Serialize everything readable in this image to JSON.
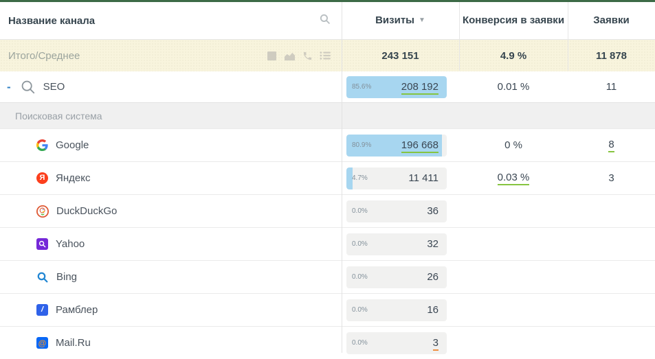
{
  "header": {
    "channel_column": "Название канала",
    "columns": [
      {
        "label": "Визиты",
        "sort": "desc"
      },
      {
        "label": "Конверсия в заявки",
        "sort": null
      },
      {
        "label": "Заявки",
        "sort": null
      }
    ]
  },
  "totals_row": {
    "label": "Итого/Среднее",
    "icons": [
      "grid-icon",
      "area-chart-icon",
      "phone-icon",
      "list-icon"
    ],
    "visits": "243 151",
    "conversion": "4.9 %",
    "leads": "11 878"
  },
  "rows": [
    {
      "type": "group",
      "name": "SEO",
      "icon": "magnifier",
      "toggle": "-",
      "visits_pct": "85.6%",
      "visits": "208 192",
      "visits_underline": "green",
      "fill": 100,
      "conversion": "0.01 %",
      "conversion_underline": null,
      "leads": "11",
      "leads_underline": null
    },
    {
      "type": "subheader",
      "name": "Поисковая система"
    },
    {
      "type": "channel",
      "name": "Google",
      "icon": "google",
      "visits_pct": "80.9%",
      "visits": "196 668",
      "visits_underline": "green",
      "fill": 95,
      "conversion": "0 %",
      "conversion_underline": null,
      "leads": "8",
      "leads_underline": "green"
    },
    {
      "type": "channel",
      "name": "Яндекс",
      "icon": "yandex",
      "visits_pct": "4.7%",
      "visits": "11 411",
      "visits_underline": null,
      "fill": 6,
      "conversion": "0.03 %",
      "conversion_underline": "green",
      "leads": "3",
      "leads_underline": null
    },
    {
      "type": "channel",
      "name": "DuckDuckGo",
      "icon": "duckduckgo",
      "visits_pct": "0.0%",
      "visits": "36",
      "visits_underline": null,
      "fill": 0,
      "conversion": "",
      "conversion_underline": null,
      "leads": "",
      "leads_underline": null
    },
    {
      "type": "channel",
      "name": "Yahoo",
      "icon": "yahoo",
      "visits_pct": "0.0%",
      "visits": "32",
      "visits_underline": null,
      "fill": 0,
      "conversion": "",
      "conversion_underline": null,
      "leads": "",
      "leads_underline": null
    },
    {
      "type": "channel",
      "name": "Bing",
      "icon": "bing",
      "visits_pct": "0.0%",
      "visits": "26",
      "visits_underline": null,
      "fill": 0,
      "conversion": "",
      "conversion_underline": null,
      "leads": "",
      "leads_underline": null
    },
    {
      "type": "channel",
      "name": "Рамблер",
      "icon": "rambler",
      "visits_pct": "0.0%",
      "visits": "16",
      "visits_underline": null,
      "fill": 0,
      "conversion": "",
      "conversion_underline": null,
      "leads": "",
      "leads_underline": null
    },
    {
      "type": "channel",
      "name": "Mail.Ru",
      "icon": "mailru",
      "visits_pct": "0.0%",
      "visits": "3",
      "visits_underline": "orange",
      "fill": 0,
      "conversion": "",
      "conversion_underline": null,
      "leads": "",
      "leads_underline": null
    }
  ],
  "colors": {
    "topbar_green": "#3d6a47",
    "totals_bg": "#f8f4dd",
    "bar_fill_blue": "#a7d6f0",
    "bar_bg_grey": "#f1f1f0",
    "underline_green": "#86c440",
    "underline_orange": "#ee8f41",
    "collapse_blue": "#2f80c5",
    "yandex_red": "#fc3f1d",
    "duckduckgo_orange": "#de5833",
    "yahoo_purple": "#7528d8",
    "bing_blue": "#2186d3",
    "rambler_blue": "#2f62e9",
    "mailru_blue": "#0968f6",
    "mailru_at_orange": "#f0932b"
  }
}
